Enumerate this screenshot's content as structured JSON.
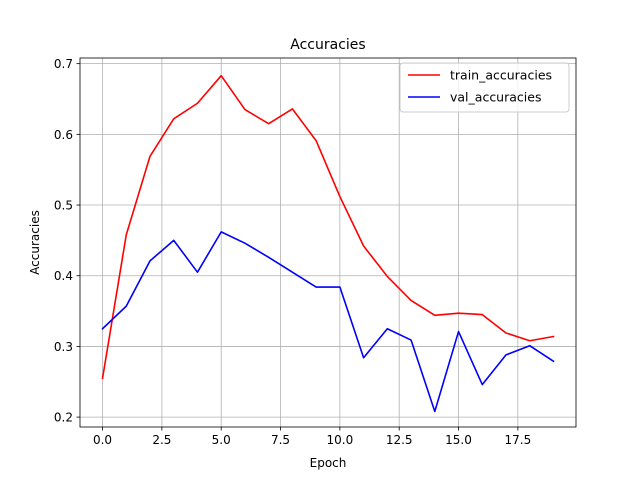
{
  "chart_data": {
    "type": "line",
    "title": "Accuracies",
    "xlabel": "Epoch",
    "ylabel": "Accuracies",
    "xlim": [
      -0.95,
      19.95
    ],
    "ylim": [
      0.186,
      0.708
    ],
    "xticks": [
      0.0,
      2.5,
      5.0,
      7.5,
      10.0,
      12.5,
      15.0,
      17.5
    ],
    "xtick_labels": [
      "0.0",
      "2.5",
      "5.0",
      "7.5",
      "10.0",
      "12.5",
      "15.0",
      "17.5"
    ],
    "yticks": [
      0.2,
      0.3,
      0.4,
      0.5,
      0.6,
      0.7
    ],
    "ytick_labels": [
      "0.2",
      "0.3",
      "0.4",
      "0.5",
      "0.6",
      "0.7"
    ],
    "grid": true,
    "legend_position": "top-right",
    "x": [
      0,
      1,
      2,
      3,
      4,
      5,
      6,
      7,
      8,
      9,
      10,
      11,
      12,
      13,
      14,
      15,
      16,
      17,
      18,
      19
    ],
    "series": [
      {
        "name": "train_accuracies",
        "color": "#ff0000",
        "values": [
          0.255,
          0.458,
          0.569,
          0.622,
          0.644,
          0.683,
          0.635,
          0.615,
          0.636,
          0.591,
          0.512,
          0.442,
          0.399,
          0.365,
          0.344,
          0.347,
          0.345,
          0.319,
          0.308,
          0.314
        ]
      },
      {
        "name": "val_accuracies",
        "color": "#0000ff",
        "values": [
          0.325,
          0.357,
          0.421,
          0.45,
          0.405,
          0.462,
          0.446,
          0.426,
          0.405,
          0.384,
          0.384,
          0.284,
          0.325,
          0.309,
          0.208,
          0.321,
          0.246,
          0.288,
          0.301,
          0.279
        ]
      }
    ]
  }
}
